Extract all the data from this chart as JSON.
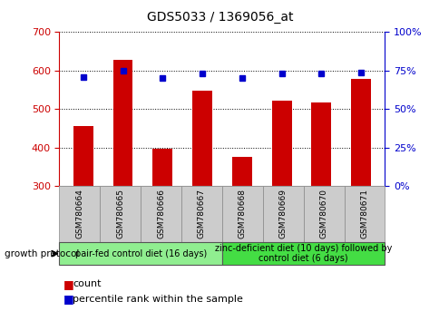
{
  "title": "GDS5033 / 1369056_at",
  "samples": [
    "GSM780664",
    "GSM780665",
    "GSM780666",
    "GSM780667",
    "GSM780668",
    "GSM780669",
    "GSM780670",
    "GSM780671"
  ],
  "counts": [
    455,
    627,
    397,
    547,
    377,
    523,
    517,
    578
  ],
  "percentiles": [
    71,
    75,
    70,
    73,
    70,
    73,
    73,
    74
  ],
  "ylim_left": [
    300,
    700
  ],
  "ylim_right": [
    0,
    100
  ],
  "yticks_left": [
    300,
    400,
    500,
    600,
    700
  ],
  "yticks_right": [
    0,
    25,
    50,
    75,
    100
  ],
  "bar_color": "#cc0000",
  "dot_color": "#0000cc",
  "bar_width": 0.5,
  "group1_label": "pair-fed control diet (16 days)",
  "group2_label": "zinc-deficient diet (10 days) followed by\ncontrol diet (6 days)",
  "group1_color": "#90ee90",
  "group2_color": "#44dd44",
  "protocol_label": "growth protocol",
  "legend_count_label": "count",
  "legend_pct_label": "percentile rank within the sample",
  "title_color": "#000000",
  "left_axis_color": "#cc0000",
  "right_axis_color": "#0000cc",
  "grid_color": "#000000",
  "background_color": "#ffffff",
  "sample_box_color": "#cccccc",
  "title_fontsize": 10,
  "tick_fontsize": 8,
  "sample_fontsize": 6.5,
  "group_fontsize": 7,
  "legend_fontsize": 8
}
